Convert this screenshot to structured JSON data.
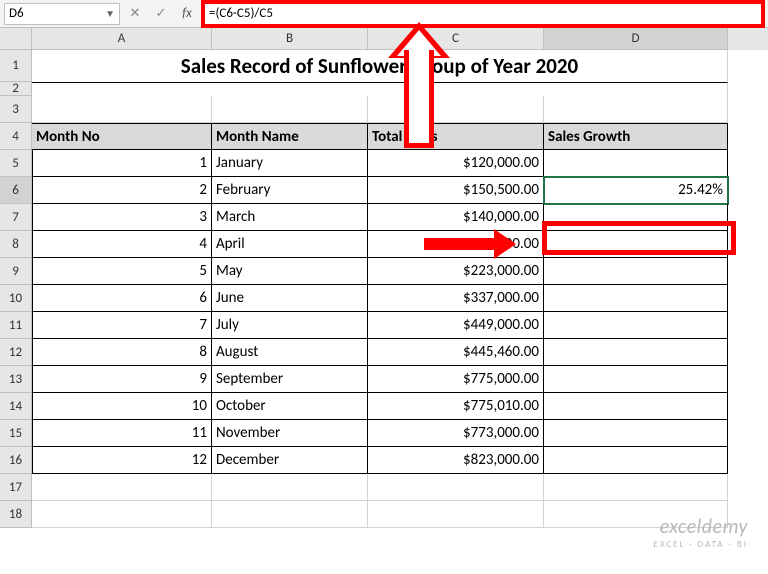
{
  "nameBox": "D6",
  "formula": "=(C6-C5)/C5",
  "columns": [
    "A",
    "B",
    "C",
    "D"
  ],
  "title": "Sales Record of Sunflower Group of Year 2020",
  "headers": {
    "a": "Month No",
    "b": "Month Name",
    "c": "Total Sales",
    "d": "Sales Growth"
  },
  "rows": [
    {
      "no": "1",
      "month": "January",
      "sales": "$120,000.00",
      "growth": ""
    },
    {
      "no": "2",
      "month": "February",
      "sales": "$150,500.00",
      "growth": "25.42%"
    },
    {
      "no": "3",
      "month": "March",
      "sales": "$140,000.00",
      "growth": ""
    },
    {
      "no": "4",
      "month": "April",
      "sales": "$250,000.00",
      "growth": ""
    },
    {
      "no": "5",
      "month": "May",
      "sales": "$223,000.00",
      "growth": ""
    },
    {
      "no": "6",
      "month": "June",
      "sales": "$337,000.00",
      "growth": ""
    },
    {
      "no": "7",
      "month": "July",
      "sales": "$449,000.00",
      "growth": ""
    },
    {
      "no": "8",
      "month": "August",
      "sales": "$445,460.00",
      "growth": ""
    },
    {
      "no": "9",
      "month": "September",
      "sales": "$775,000.00",
      "growth": ""
    },
    {
      "no": "10",
      "month": "October",
      "sales": "$775,010.00",
      "growth": ""
    },
    {
      "no": "11",
      "month": "November",
      "sales": "$773,000.00",
      "growth": ""
    },
    {
      "no": "12",
      "month": "December",
      "sales": "$823,000.00",
      "growth": ""
    }
  ],
  "watermark": {
    "line1": "exceldemy",
    "line2": "EXCEL · DATA · BI"
  },
  "selected": {
    "cell": "D6",
    "rowIndex": 6,
    "colLetter": "D"
  },
  "colors": {
    "headerFill": "#d9d9d9",
    "gridBorder": "#000000",
    "sheetChrome": "#e6e6e6",
    "accentRed": "#ff0000",
    "excelGreen": "#217346"
  }
}
